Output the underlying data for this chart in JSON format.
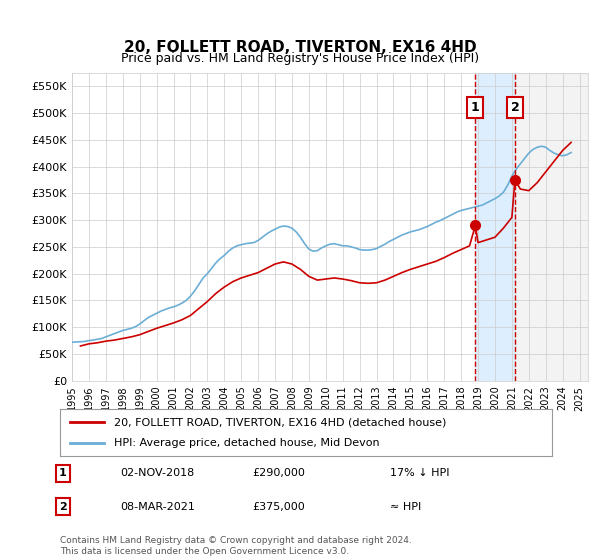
{
  "title": "20, FOLLETT ROAD, TIVERTON, EX16 4HD",
  "subtitle": "Price paid vs. HM Land Registry's House Price Index (HPI)",
  "ylabel_ticks": [
    "£0",
    "£50K",
    "£100K",
    "£150K",
    "£200K",
    "£250K",
    "£300K",
    "£350K",
    "£400K",
    "£450K",
    "£500K",
    "£550K"
  ],
  "ytick_values": [
    0,
    50000,
    100000,
    150000,
    200000,
    250000,
    300000,
    350000,
    400000,
    450000,
    500000,
    550000
  ],
  "ylim": [
    0,
    575000
  ],
  "xlim_start": 1995.0,
  "xlim_end": 2025.5,
  "sale1_x": 2018.84,
  "sale1_y": 290000,
  "sale1_label": "1",
  "sale2_x": 2021.18,
  "sale2_y": 375000,
  "sale2_label": "2",
  "vline1_x": 2018.84,
  "vline2_x": 2021.18,
  "shade_start": 2018.84,
  "shade_end": 2021.18,
  "legend_line1": "20, FOLLETT ROAD, TIVERTON, EX16 4HD (detached house)",
  "legend_line2": "HPI: Average price, detached house, Mid Devon",
  "table_row1_num": "1",
  "table_row1_date": "02-NOV-2018",
  "table_row1_price": "£290,000",
  "table_row1_hpi": "17% ↓ HPI",
  "table_row2_num": "2",
  "table_row2_date": "08-MAR-2021",
  "table_row2_price": "£375,000",
  "table_row2_hpi": "≈ HPI",
  "footer": "Contains HM Land Registry data © Crown copyright and database right 2024.\nThis data is licensed under the Open Government Licence v3.0.",
  "hpi_color": "#6baed6",
  "sale_color": "#cc0000",
  "vline_color": "#cc0000",
  "shade_color": "#ddeeff",
  "hatch_color": "#cccccc",
  "grid_color": "#cccccc",
  "background_color": "#ffffff",
  "hpi_data_x": [
    1995.0,
    1995.25,
    1995.5,
    1995.75,
    1996.0,
    1996.25,
    1996.5,
    1996.75,
    1997.0,
    1997.25,
    1997.5,
    1997.75,
    1998.0,
    1998.25,
    1998.5,
    1998.75,
    1999.0,
    1999.25,
    1999.5,
    1999.75,
    2000.0,
    2000.25,
    2000.5,
    2000.75,
    2001.0,
    2001.25,
    2001.5,
    2001.75,
    2002.0,
    2002.25,
    2002.5,
    2002.75,
    2003.0,
    2003.25,
    2003.5,
    2003.75,
    2004.0,
    2004.25,
    2004.5,
    2004.75,
    2005.0,
    2005.25,
    2005.5,
    2005.75,
    2006.0,
    2006.25,
    2006.5,
    2006.75,
    2007.0,
    2007.25,
    2007.5,
    2007.75,
    2008.0,
    2008.25,
    2008.5,
    2008.75,
    2009.0,
    2009.25,
    2009.5,
    2009.75,
    2010.0,
    2010.25,
    2010.5,
    2010.75,
    2011.0,
    2011.25,
    2011.5,
    2011.75,
    2012.0,
    2012.25,
    2012.5,
    2012.75,
    2013.0,
    2013.25,
    2013.5,
    2013.75,
    2014.0,
    2014.25,
    2014.5,
    2014.75,
    2015.0,
    2015.25,
    2015.5,
    2015.75,
    2016.0,
    2016.25,
    2016.5,
    2016.75,
    2017.0,
    2017.25,
    2017.5,
    2017.75,
    2018.0,
    2018.25,
    2018.5,
    2018.75,
    2019.0,
    2019.25,
    2019.5,
    2019.75,
    2020.0,
    2020.25,
    2020.5,
    2020.75,
    2021.0,
    2021.25,
    2021.5,
    2021.75,
    2022.0,
    2022.25,
    2022.5,
    2022.75,
    2023.0,
    2023.25,
    2023.5,
    2023.75,
    2024.0,
    2024.25,
    2024.5
  ],
  "hpi_data_y": [
    72000,
    72500,
    73000,
    73500,
    75000,
    76000,
    77500,
    79000,
    82000,
    85000,
    88000,
    91000,
    94000,
    96000,
    98000,
    101000,
    106000,
    112000,
    118000,
    122000,
    126000,
    130000,
    133000,
    136000,
    138000,
    141000,
    145000,
    150000,
    158000,
    168000,
    180000,
    192000,
    200000,
    210000,
    220000,
    228000,
    234000,
    242000,
    248000,
    252000,
    254000,
    256000,
    257000,
    258000,
    262000,
    268000,
    274000,
    279000,
    283000,
    287000,
    289000,
    288000,
    285000,
    278000,
    268000,
    256000,
    246000,
    242000,
    243000,
    248000,
    252000,
    255000,
    256000,
    254000,
    252000,
    252000,
    250000,
    248000,
    245000,
    244000,
    244000,
    245000,
    247000,
    251000,
    255000,
    260000,
    264000,
    268000,
    272000,
    275000,
    278000,
    280000,
    282000,
    285000,
    288000,
    292000,
    296000,
    299000,
    303000,
    307000,
    311000,
    315000,
    318000,
    320000,
    322000,
    324000,
    326000,
    328000,
    332000,
    336000,
    340000,
    345000,
    352000,
    365000,
    382000,
    395000,
    405000,
    415000,
    425000,
    432000,
    436000,
    438000,
    436000,
    430000,
    425000,
    422000,
    420000,
    422000,
    426000
  ],
  "sale_data_x": [
    1995.5,
    1995.75,
    1996.0,
    1996.5,
    1997.0,
    1997.5,
    1998.0,
    1998.5,
    1999.0,
    1999.5,
    2000.0,
    2000.5,
    2001.0,
    2001.5,
    2002.0,
    2002.5,
    2003.0,
    2003.5,
    2004.0,
    2004.5,
    2005.0,
    2005.5,
    2006.0,
    2006.5,
    2007.0,
    2007.5,
    2008.0,
    2008.5,
    2009.0,
    2009.5,
    2010.0,
    2010.5,
    2011.0,
    2011.5,
    2012.0,
    2012.5,
    2013.0,
    2013.5,
    2014.0,
    2014.5,
    2015.0,
    2015.5,
    2016.0,
    2016.5,
    2017.0,
    2017.5,
    2018.0,
    2018.5,
    2018.84,
    2019.0,
    2019.5,
    2020.0,
    2020.5,
    2021.0,
    2021.18,
    2021.5,
    2022.0,
    2022.5,
    2023.0,
    2023.5,
    2024.0,
    2024.5
  ],
  "sale_data_y": [
    65000,
    67000,
    69000,
    71000,
    74000,
    76000,
    79000,
    82000,
    86000,
    92000,
    98000,
    103000,
    108000,
    114000,
    122000,
    135000,
    148000,
    163000,
    175000,
    185000,
    192000,
    197000,
    202000,
    210000,
    218000,
    222000,
    218000,
    208000,
    195000,
    188000,
    190000,
    192000,
    190000,
    187000,
    183000,
    182000,
    183000,
    188000,
    195000,
    202000,
    208000,
    213000,
    218000,
    223000,
    230000,
    238000,
    245000,
    252000,
    290000,
    258000,
    263000,
    268000,
    285000,
    305000,
    375000,
    358000,
    355000,
    370000,
    390000,
    410000,
    430000,
    445000
  ]
}
